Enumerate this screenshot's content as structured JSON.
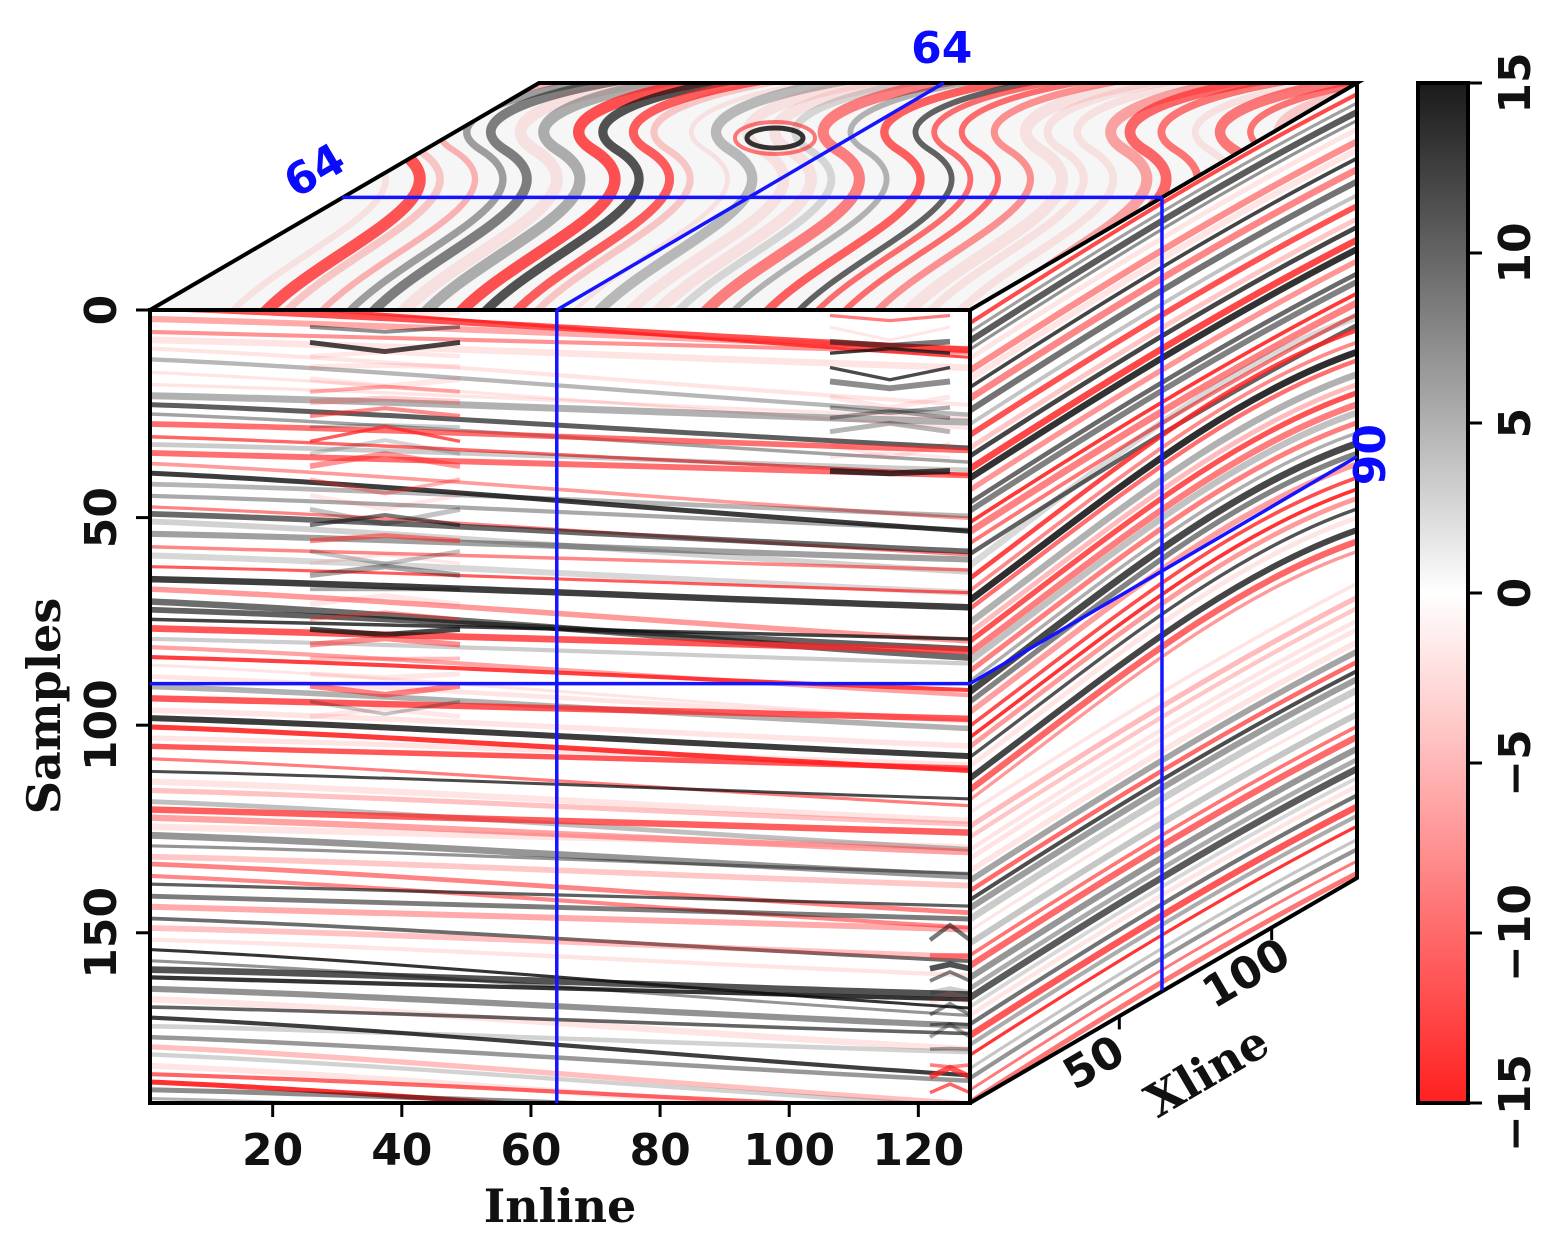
{
  "figure": {
    "colormap": {
      "negative_color": "#ff2222",
      "zero_color": "#ffffff",
      "positive_color": "#111111",
      "colorbar_ticks": [
        15,
        10,
        5,
        0,
        -5,
        -10,
        -15
      ],
      "colorbar_tick_labels": [
        "15",
        "10",
        "5",
        "0",
        "−5",
        "−10",
        "−15"
      ],
      "range": [
        -15,
        15
      ]
    },
    "slice_color": "#1414ff",
    "axes": {
      "inline": {
        "title": "Inline",
        "ticks": [
          20,
          40,
          60,
          80,
          100,
          120
        ],
        "tick_labels": [
          "20",
          "40",
          "60",
          "80",
          "100",
          "120"
        ],
        "range": [
          1,
          128
        ]
      },
      "samples": {
        "title": "Samples",
        "ticks": [
          0,
          50,
          100,
          150
        ],
        "tick_labels": [
          "0",
          "50",
          "100",
          "150"
        ],
        "range": [
          0,
          191
        ]
      },
      "xline": {
        "title": "Xline",
        "ticks": [
          50,
          100
        ],
        "tick_labels": [
          "50",
          "100"
        ],
        "range": [
          1,
          128
        ]
      }
    },
    "slices": {
      "inline_value": 64,
      "xline_value": 64,
      "sample_value": 90,
      "inline_label": "64",
      "xline_label": "64",
      "sample_label": "90"
    }
  }
}
